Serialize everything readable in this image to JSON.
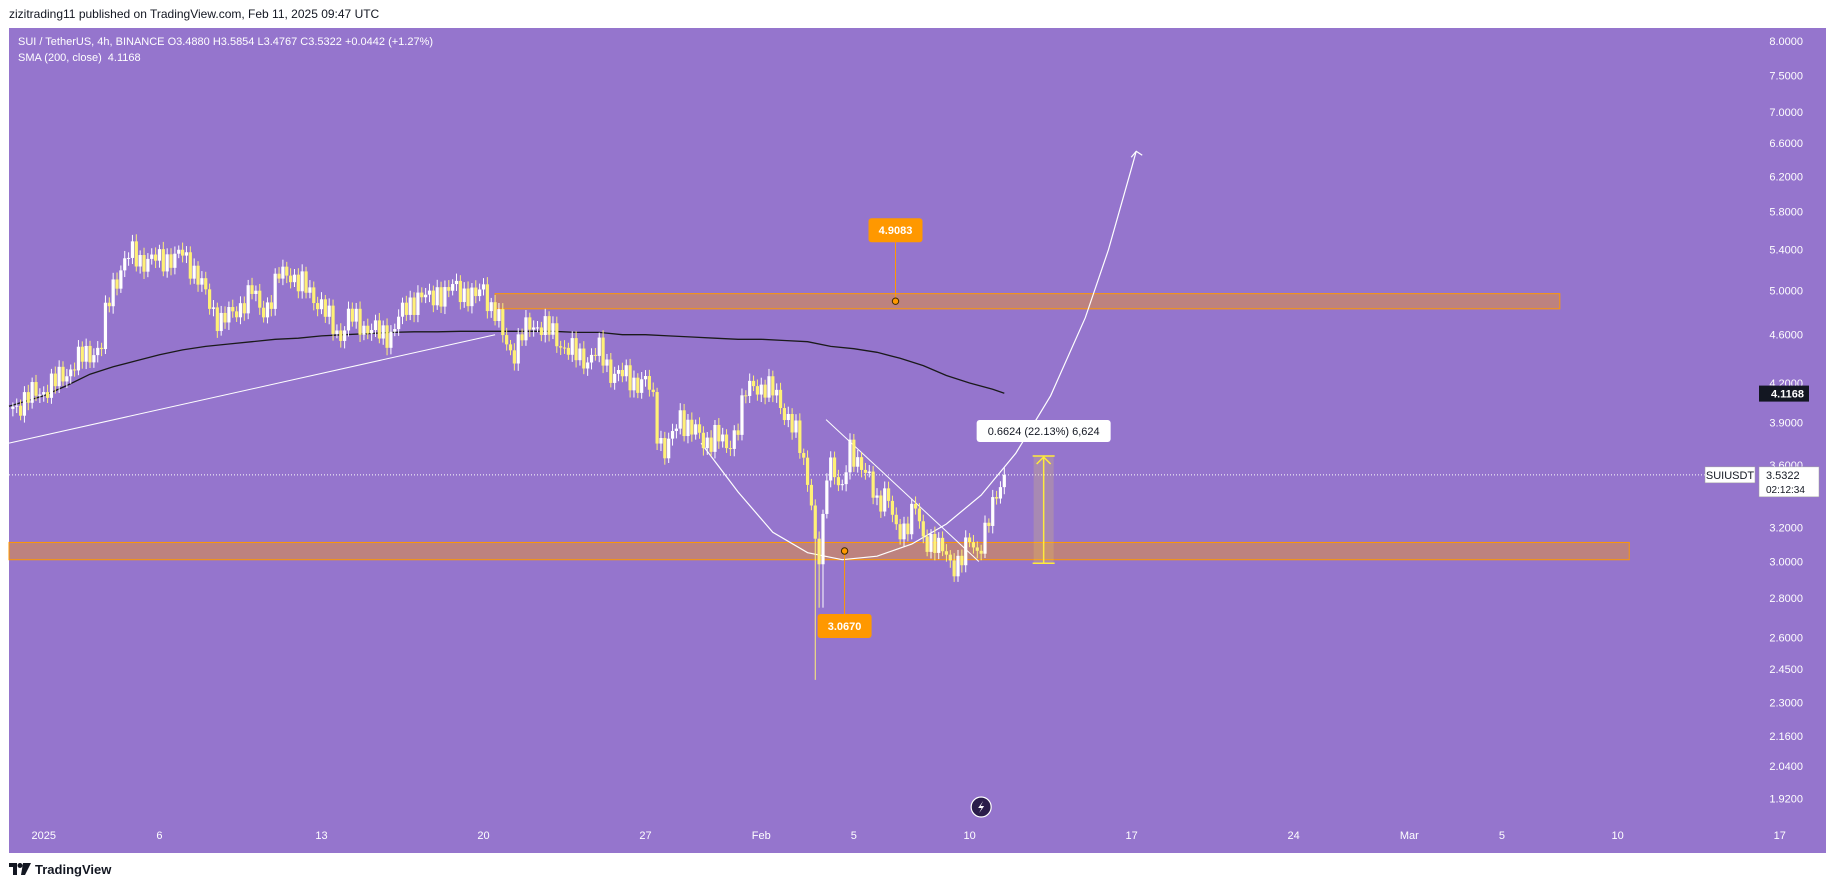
{
  "header": {
    "published": "zizitrading11 published on TradingView.com, Feb 11, 2025 09:47 UTC"
  },
  "legend": {
    "symbol_line": "SUI / TetherUS, 4h, BINANCE  O3.4880  H3.5854  L3.4767  C3.5322  +0.0442 (+1.27%)",
    "sma_label": "SMA (200, close)",
    "sma_value": "4.1168"
  },
  "footer": {
    "brand": "TradingView"
  },
  "colors": {
    "background": "#9575cd",
    "candle_up": "#ffffff",
    "candle_down": "#fff176",
    "zone_fill": "#ff9800",
    "label_orange": "#ff9800",
    "sma_line": "#1a1a1a",
    "projection_line": "#ffffff",
    "measure_yellow": "#ffeb3b"
  },
  "chart_data": {
    "type": "candlestick",
    "symbol": "SUIUSDT",
    "timeframe": "4h",
    "exchange": "BINANCE",
    "y_scale": "log",
    "ylim": [
      1.85,
      8.2
    ],
    "y_ticks": [
      "8.0000",
      "7.5000",
      "7.0000",
      "6.6000",
      "6.2000",
      "5.8000",
      "5.4000",
      "5.0000",
      "4.6000",
      "4.2000",
      "3.9000",
      "3.6000",
      "3.2000",
      "3.0000",
      "2.8000",
      "2.6000",
      "2.4500",
      "2.3000",
      "2.1600",
      "2.0400",
      "1.9200"
    ],
    "x_ticks": [
      {
        "day": 0,
        "label": "2025"
      },
      {
        "day": 5,
        "label": "6"
      },
      {
        "day": 12,
        "label": "13"
      },
      {
        "day": 19,
        "label": "20"
      },
      {
        "day": 26,
        "label": "27"
      },
      {
        "day": 31,
        "label": "Feb"
      },
      {
        "day": 35,
        "label": "5"
      },
      {
        "day": 40,
        "label": "10"
      },
      {
        "day": 47,
        "label": "17"
      },
      {
        "day": 54,
        "label": "24"
      },
      {
        "day": 59,
        "label": "Mar"
      },
      {
        "day": 63,
        "label": "5"
      },
      {
        "day": 68,
        "label": "10"
      },
      {
        "day": 75,
        "label": "17"
      }
    ],
    "x_range_days": [
      -1.5,
      77
    ],
    "last_price": "3.5322",
    "last_price_label": "SUIUSDT",
    "countdown": "02:12:34",
    "sma_badge": "4.1168",
    "close_path": [
      [
        -1.5,
        4.0
      ],
      [
        -0.5,
        4.1
      ],
      [
        0.5,
        4.2
      ],
      [
        1.3,
        4.35
      ],
      [
        2.0,
        4.45
      ],
      [
        2.5,
        4.5
      ],
      [
        2.7,
        4.8
      ],
      [
        3.0,
        5.05
      ],
      [
        3.4,
        5.25
      ],
      [
        3.8,
        5.35
      ],
      [
        4.3,
        5.3
      ],
      [
        4.8,
        5.28
      ],
      [
        5.3,
        5.33
      ],
      [
        5.7,
        5.3
      ],
      [
        6.0,
        5.35
      ],
      [
        6.4,
        5.25
      ],
      [
        6.8,
        5.05
      ],
      [
        7.2,
        4.85
      ],
      [
        7.7,
        4.72
      ],
      [
        8.2,
        4.78
      ],
      [
        8.6,
        4.9
      ],
      [
        9.0,
        4.98
      ],
      [
        9.4,
        4.82
      ],
      [
        9.8,
        4.9
      ],
      [
        10.2,
        5.15
      ],
      [
        10.6,
        5.2
      ],
      [
        11.0,
        5.05
      ],
      [
        11.5,
        5.0
      ],
      [
        12.0,
        4.85
      ],
      [
        12.4,
        4.7
      ],
      [
        12.8,
        4.6
      ],
      [
        13.2,
        4.75
      ],
      [
        13.7,
        4.7
      ],
      [
        14.1,
        4.65
      ],
      [
        14.5,
        4.6
      ],
      [
        15.0,
        4.62
      ],
      [
        15.4,
        4.75
      ],
      [
        15.8,
        4.88
      ],
      [
        16.2,
        4.95
      ],
      [
        16.6,
        4.9
      ],
      [
        17.0,
        5.0
      ],
      [
        17.4,
        4.95
      ],
      [
        17.8,
        5.05
      ],
      [
        18.2,
        4.98
      ],
      [
        18.6,
        4.9
      ],
      [
        19.0,
        5.05
      ],
      [
        19.3,
        4.85
      ],
      [
        19.6,
        4.75
      ],
      [
        19.9,
        4.55
      ],
      [
        20.3,
        4.45
      ],
      [
        20.7,
        4.6
      ],
      [
        21.1,
        4.7
      ],
      [
        21.5,
        4.68
      ],
      [
        22.0,
        4.6
      ],
      [
        22.5,
        4.5
      ],
      [
        23.0,
        4.42
      ],
      [
        23.5,
        4.4
      ],
      [
        24.0,
        4.45
      ],
      [
        24.5,
        4.3
      ],
      [
        25.0,
        4.25
      ],
      [
        25.5,
        4.22
      ],
      [
        26.0,
        4.2
      ],
      [
        26.3,
        4.1
      ],
      [
        26.5,
        3.85
      ],
      [
        26.8,
        3.7
      ],
      [
        27.1,
        3.75
      ],
      [
        27.5,
        3.95
      ],
      [
        28.0,
        3.85
      ],
      [
        28.5,
        3.75
      ],
      [
        29.0,
        3.82
      ],
      [
        29.5,
        3.7
      ],
      [
        30.0,
        3.9
      ],
      [
        30.3,
        4.1
      ],
      [
        30.7,
        4.2
      ],
      [
        31.2,
        4.15
      ],
      [
        31.7,
        4.1
      ],
      [
        32.1,
        3.95
      ],
      [
        32.5,
        3.8
      ],
      [
        32.9,
        3.6
      ],
      [
        33.2,
        3.35
      ],
      [
        33.4,
        2.95
      ],
      [
        33.6,
        3.05
      ],
      [
        33.9,
        3.7
      ],
      [
        34.2,
        3.55
      ],
      [
        34.5,
        3.4
      ],
      [
        34.8,
        3.7
      ],
      [
        35.2,
        3.65
      ],
      [
        35.6,
        3.5
      ],
      [
        36.0,
        3.35
      ],
      [
        36.4,
        3.45
      ],
      [
        36.8,
        3.15
      ],
      [
        37.2,
        3.2
      ],
      [
        37.6,
        3.35
      ],
      [
        38.0,
        3.1
      ],
      [
        38.4,
        3.15
      ],
      [
        38.8,
        3.05
      ],
      [
        39.2,
        2.98
      ],
      [
        39.6,
        3.02
      ],
      [
        40.0,
        3.1
      ],
      [
        40.3,
        3.05
      ],
      [
        40.7,
        3.2
      ],
      [
        41.0,
        3.3
      ],
      [
        41.3,
        3.45
      ],
      [
        41.5,
        3.53
      ]
    ],
    "sma_200_path": [
      [
        -1.5,
        4.02
      ],
      [
        0,
        4.1
      ],
      [
        1,
        4.18
      ],
      [
        2,
        4.27
      ],
      [
        3,
        4.33
      ],
      [
        4,
        4.38
      ],
      [
        5,
        4.43
      ],
      [
        6,
        4.47
      ],
      [
        7,
        4.5
      ],
      [
        8,
        4.52
      ],
      [
        9,
        4.54
      ],
      [
        10,
        4.56
      ],
      [
        11,
        4.57
      ],
      [
        12,
        4.59
      ],
      [
        13,
        4.6
      ],
      [
        14,
        4.61
      ],
      [
        15,
        4.62
      ],
      [
        16,
        4.625
      ],
      [
        17,
        4.625
      ],
      [
        18,
        4.63
      ],
      [
        19,
        4.63
      ],
      [
        20,
        4.63
      ],
      [
        21,
        4.63
      ],
      [
        22,
        4.63
      ],
      [
        23,
        4.62
      ],
      [
        24,
        4.62
      ],
      [
        25,
        4.6
      ],
      [
        26,
        4.6
      ],
      [
        27,
        4.59
      ],
      [
        28,
        4.58
      ],
      [
        29,
        4.57
      ],
      [
        30,
        4.56
      ],
      [
        31,
        4.56
      ],
      [
        32,
        4.55
      ],
      [
        33,
        4.54
      ],
      [
        34,
        4.5
      ],
      [
        35,
        4.48
      ],
      [
        36,
        4.45
      ],
      [
        37,
        4.4
      ],
      [
        38,
        4.34
      ],
      [
        39,
        4.26
      ],
      [
        40,
        4.2
      ],
      [
        41,
        4.15
      ],
      [
        41.5,
        4.12
      ]
    ],
    "zones": [
      {
        "label": "4.9083",
        "low": 4.83,
        "high": 4.97,
        "x_from": 19.5,
        "x_to": 65.5,
        "marker_day": 36.8
      },
      {
        "label": "3.0670",
        "low": 3.01,
        "high": 3.11,
        "x_from": -1.5,
        "x_to": 68.5,
        "marker_day": 34.6
      }
    ],
    "measure": {
      "label": "0.6624 (22.13%) 6,624",
      "from": 2.99,
      "to": 3.66,
      "day": 43.2
    },
    "trendlines": [
      {
        "from": [
          -1.5,
          3.75
        ],
        "to": [
          19.5,
          4.6
        ]
      },
      {
        "from": [
          33.8,
          3.92
        ],
        "to": [
          40.4,
          3.0
        ]
      }
    ],
    "projection_curve": [
      [
        28.4,
        3.75
      ],
      [
        30,
        3.42
      ],
      [
        31.5,
        3.17
      ],
      [
        33,
        3.05
      ],
      [
        34.5,
        3.01
      ],
      [
        36,
        3.03
      ],
      [
        37.5,
        3.1
      ],
      [
        39,
        3.22
      ],
      [
        40.5,
        3.4
      ],
      [
        42,
        3.68
      ],
      [
        43.5,
        4.1
      ],
      [
        45,
        4.75
      ],
      [
        46,
        5.4
      ],
      [
        47,
        6.3
      ]
    ],
    "projection_arrow_head": [
      47.2,
      6.5
    ]
  }
}
